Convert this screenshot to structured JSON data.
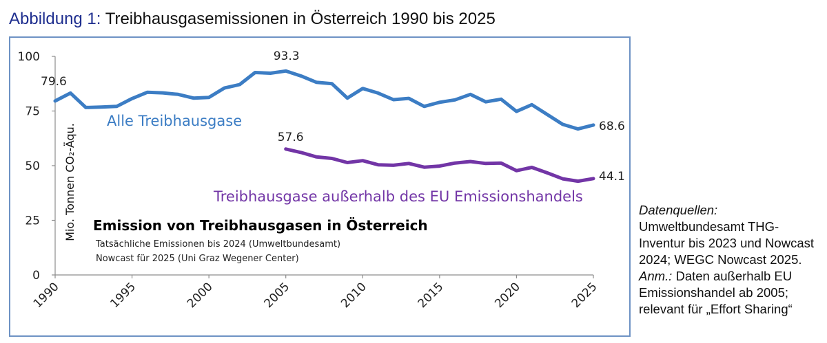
{
  "figure": {
    "label": "Abbildung 1:",
    "title": "Treibhausgasemissionen in Österreich 1990 bis 2025"
  },
  "notes": {
    "sources_label": "Datenquellen:",
    "sources_text": "Umweltbundesamt THG-Inventur bis 2023 und Nowcast 2024; WEGC Nowcast 2025.",
    "remark_label": "Anm.:",
    "remark_text": "Daten außerhalb EU Emissionshandel ab 2005; relevant für „Effort Sharing“"
  },
  "chart_data": {
    "type": "line",
    "title": "Emission von Treibhausgasen in Österreich",
    "subtitle_lines": [
      "Tatsächliche Emissionen bis 2024 (Umweltbundesamt)",
      "Nowcast für 2025 (Uni Graz Wegener Center)"
    ],
    "ylabel": "Mio. Tonnen CO₂-Äqu.",
    "xlabel": "",
    "xlim": [
      1990,
      2025
    ],
    "ylim": [
      0,
      100
    ],
    "x_ticks": [
      1990,
      1995,
      2000,
      2005,
      2010,
      2015,
      2020,
      2025
    ],
    "y_ticks": [
      0,
      25,
      50,
      75,
      100
    ],
    "grid": false,
    "colors": {
      "total": "#3c7dc4",
      "non_ets": "#7235a6",
      "axis": "#8c8c8c"
    },
    "series": [
      {
        "name": "Alle Treibhausgase",
        "color": "#3c7dc4",
        "x": [
          1990,
          1991,
          1992,
          1993,
          1994,
          1995,
          1996,
          1997,
          1998,
          1999,
          2000,
          2001,
          2002,
          2003,
          2004,
          2005,
          2006,
          2007,
          2008,
          2009,
          2010,
          2011,
          2012,
          2013,
          2014,
          2015,
          2016,
          2017,
          2018,
          2019,
          2020,
          2021,
          2022,
          2023,
          2024,
          2025
        ],
        "values": [
          79.6,
          83.2,
          76.6,
          76.8,
          77.1,
          80.7,
          83.6,
          83.3,
          82.6,
          80.9,
          81.2,
          85.5,
          87.1,
          92.6,
          92.3,
          93.3,
          91.0,
          88.1,
          87.5,
          80.9,
          85.3,
          83.2,
          80.2,
          80.8,
          77.1,
          79.0,
          80.1,
          82.6,
          79.2,
          80.4,
          74.8,
          77.9,
          73.4,
          68.9,
          66.8,
          68.6
        ],
        "start_label": "79.6",
        "peak_label": "93.3",
        "end_label": "68.6"
      },
      {
        "name": "Treibhausgase außerhalb des EU Emissionshandels",
        "color": "#7235a6",
        "x": [
          2005,
          2006,
          2007,
          2008,
          2009,
          2010,
          2011,
          2012,
          2013,
          2014,
          2015,
          2016,
          2017,
          2018,
          2019,
          2020,
          2021,
          2022,
          2023,
          2024,
          2025
        ],
        "values": [
          57.6,
          56.0,
          54.0,
          53.3,
          51.4,
          52.3,
          50.4,
          50.2,
          51.0,
          49.3,
          49.8,
          51.2,
          51.9,
          51.0,
          51.2,
          47.7,
          49.2,
          46.7,
          44.0,
          42.9,
          44.1
        ],
        "start_label": "57.6",
        "end_label": "44.1"
      }
    ]
  }
}
